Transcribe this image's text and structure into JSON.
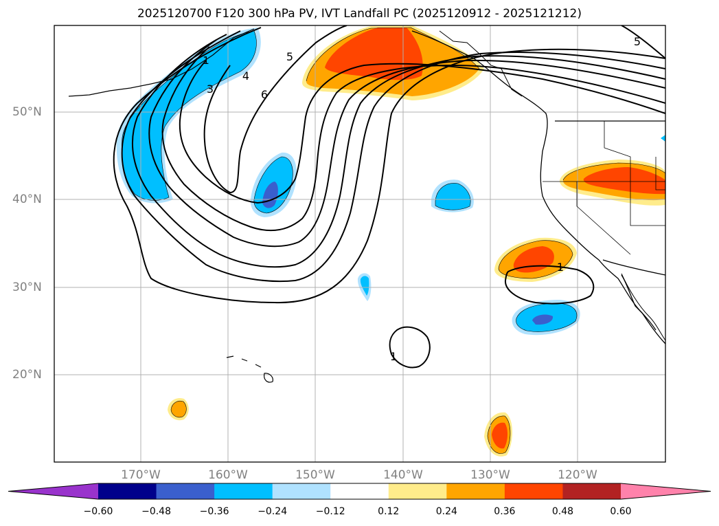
{
  "title": "2025120700 F120 300 hPa PV, IVT Landfall PC (2025120912 - 2025121212)",
  "lat_labels": [
    "50°N",
    "40°N",
    "30°N",
    "20°N"
  ],
  "lon_labels": [
    "170°W",
    "160°W",
    "150°W",
    "140°W",
    "130°W",
    "120°W"
  ],
  "colorbar": {
    "ticks": [
      "−0.60",
      "−0.48",
      "−0.36",
      "−0.24",
      "−0.12",
      "0.12",
      "0.24",
      "0.36",
      "0.48",
      "0.60"
    ],
    "colors": [
      "#9933cc",
      "#00008b",
      "#3a5fcd",
      "#00bfff",
      "#b0e2ff",
      "#ffffff",
      "#ffec8b",
      "#ffa500",
      "#ff4500",
      "#b22222",
      "#ff82ab"
    ]
  },
  "pv_contour_labels": [
    "1",
    "3",
    "4",
    "5",
    "6",
    "5",
    "1"
  ]
}
